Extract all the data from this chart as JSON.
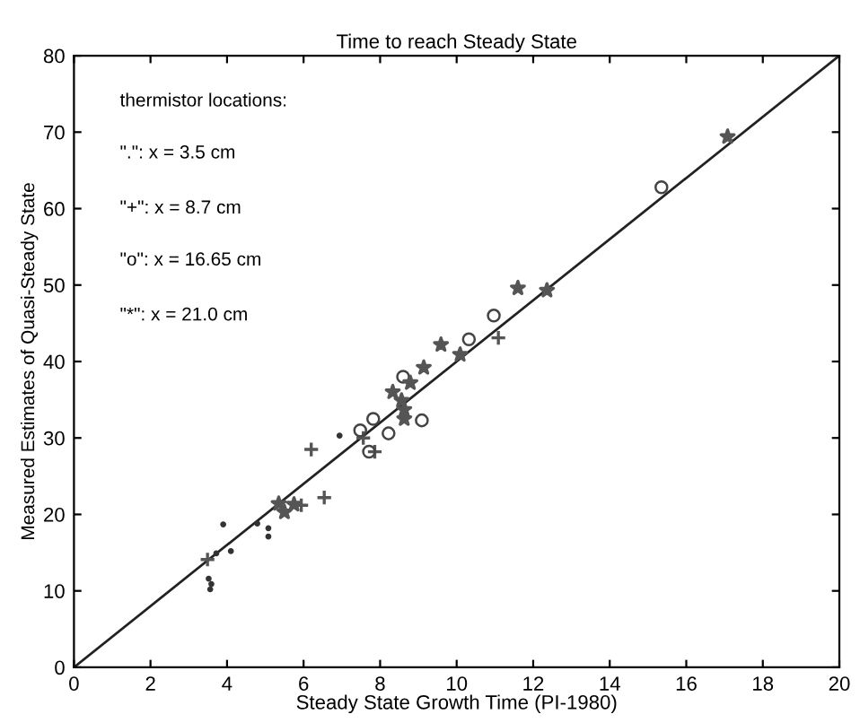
{
  "chart_data": {
    "type": "scatter",
    "title": "Time to reach Steady State",
    "xlabel": "Steady State Growth Time (PI-1980)",
    "ylabel": "Measured Estimates of Quasi-Steady State",
    "xlim": [
      0,
      20
    ],
    "ylim": [
      0,
      80
    ],
    "xticks": [
      0,
      2,
      4,
      6,
      8,
      10,
      12,
      14,
      16,
      18,
      20
    ],
    "yticks": [
      0,
      10,
      20,
      30,
      40,
      50,
      60,
      70,
      80
    ],
    "grid": false,
    "legend": false,
    "annotations": [
      "thermistor locations:",
      "\".\": x = 3.5 cm",
      "\"+\": x = 8.7 cm",
      "\"o\": x = 16.65 cm",
      "\"*\": x = 21.0 cm"
    ],
    "series": [
      {
        "marker": "point",
        "color": "#333333",
        "x": [
          3.52,
          3.59,
          3.56,
          3.9,
          4.1,
          3.72,
          5.08,
          5.08,
          4.79,
          6.94
        ],
        "values": [
          11.6,
          10.9,
          10.2,
          18.7,
          15.2,
          14.9,
          18.2,
          17.1,
          18.8,
          30.3
        ]
      },
      {
        "marker": "cross",
        "color": "#555555",
        "x": [
          3.49,
          6.2,
          6.54,
          5.94,
          11.09,
          7.86,
          7.56
        ],
        "values": [
          14.1,
          28.5,
          22.2,
          21.2,
          43.1,
          28.2,
          30.0
        ]
      },
      {
        "marker": "circle",
        "color": "#444444",
        "x": [
          10.97,
          10.32,
          8.6,
          9.09,
          8.22,
          7.82,
          7.48,
          7.71,
          15.35
        ],
        "values": [
          46.0,
          42.9,
          38.0,
          32.3,
          30.6,
          32.5,
          31.0,
          28.2,
          62.8
        ]
      },
      {
        "marker": "star",
        "color": "#555555",
        "x": [
          11.6,
          12.36,
          9.59,
          10.09,
          9.14,
          8.79,
          8.33,
          8.56,
          8.63,
          8.63,
          17.08,
          5.35,
          5.5,
          5.75
        ],
        "values": [
          49.6,
          49.3,
          42.2,
          40.9,
          39.2,
          37.2,
          36.0,
          34.9,
          33.7,
          32.5,
          69.4,
          21.4,
          20.3,
          21.3
        ]
      },
      {
        "type": "line",
        "marker": "none",
        "line_style": "solid",
        "color": "#222222",
        "x": [
          0,
          20
        ],
        "values": [
          0,
          80
        ]
      }
    ]
  }
}
